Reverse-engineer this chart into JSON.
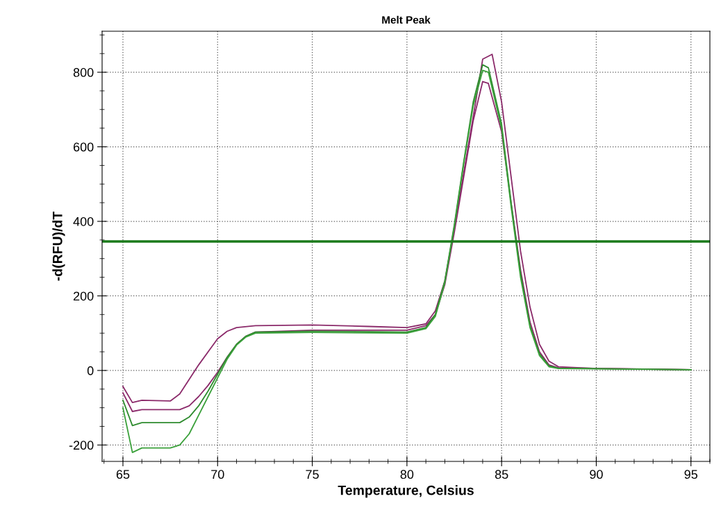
{
  "chart_data": {
    "type": "line",
    "title": "Melt Peak",
    "xlabel": "Temperature, Celsius",
    "ylabel": "-d(RFU)/dT",
    "xlim": [
      63.9,
      96
    ],
    "xticks": [
      65,
      70,
      75,
      80,
      85,
      90,
      95
    ],
    "ylim": [
      -244,
      910
    ],
    "yticks": [
      -200,
      0,
      200,
      400,
      600,
      800
    ],
    "grid": true,
    "line_style": "solid",
    "marker": "none",
    "ref_lines": [
      {
        "axis": "y",
        "value": 346,
        "color": "#1a7a1a"
      }
    ],
    "series": [
      {
        "color": "#8b2a6a",
        "x": [
          65,
          65.5,
          66,
          67.5,
          68,
          69,
          69.5,
          70,
          70.5,
          71,
          72,
          75,
          78,
          80,
          81,
          81.5,
          82,
          82.5,
          83,
          83.5,
          84,
          84.5,
          85,
          85.5,
          86,
          86.5,
          87,
          87.5,
          88,
          90,
          95
        ],
        "values": [
          -43,
          -86,
          -80,
          -82,
          -63,
          15,
          50,
          85,
          105,
          115,
          120,
          122,
          118,
          115,
          125,
          160,
          240,
          380,
          530,
          680,
          835,
          848,
          720,
          520,
          320,
          170,
          70,
          25,
          10,
          5,
          2
        ]
      },
      {
        "color": "#8b2a6a",
        "x": [
          65,
          65.5,
          66,
          68,
          68.5,
          69,
          69.5,
          70,
          70.5,
          71,
          71.5,
          72,
          75,
          80,
          81,
          81.5,
          82,
          82.5,
          83,
          83.5,
          84,
          84.3,
          85,
          85.5,
          86,
          86.5,
          87,
          87.5,
          88,
          95
        ],
        "values": [
          -60,
          -110,
          -105,
          -105,
          -95,
          -70,
          -40,
          -5,
          35,
          70,
          92,
          103,
          108,
          108,
          120,
          150,
          230,
          370,
          520,
          670,
          775,
          770,
          640,
          450,
          270,
          130,
          50,
          15,
          7,
          2
        ]
      },
      {
        "color": "#2e8b2e",
        "x": [
          65,
          65.5,
          66,
          68,
          68.5,
          69,
          69.5,
          70,
          70.5,
          71,
          71.5,
          72,
          75,
          80,
          81,
          81.5,
          82,
          82.5,
          83,
          83.5,
          84,
          84.3,
          85,
          85.5,
          86,
          86.5,
          87,
          87.5,
          88,
          95
        ],
        "values": [
          -80,
          -148,
          -140,
          -140,
          -125,
          -95,
          -55,
          -10,
          35,
          70,
          92,
          103,
          105,
          103,
          115,
          150,
          240,
          390,
          560,
          720,
          820,
          812,
          660,
          450,
          260,
          120,
          45,
          12,
          6,
          2
        ]
      },
      {
        "color": "#3aa03a",
        "x": [
          65,
          65.5,
          66,
          67.5,
          68,
          68.5,
          69,
          69.5,
          70,
          70.5,
          71,
          71.5,
          72,
          75,
          80,
          81,
          81.5,
          82,
          82.5,
          83,
          83.5,
          84,
          84.3,
          85,
          85.5,
          86,
          86.5,
          87,
          87.5,
          88,
          95
        ],
        "values": [
          -100,
          -220,
          -208,
          -208,
          -200,
          -170,
          -120,
          -70,
          -20,
          30,
          68,
          90,
          100,
          102,
          100,
          112,
          145,
          235,
          385,
          555,
          710,
          805,
          800,
          650,
          440,
          250,
          115,
          40,
          10,
          5,
          2
        ]
      }
    ]
  }
}
